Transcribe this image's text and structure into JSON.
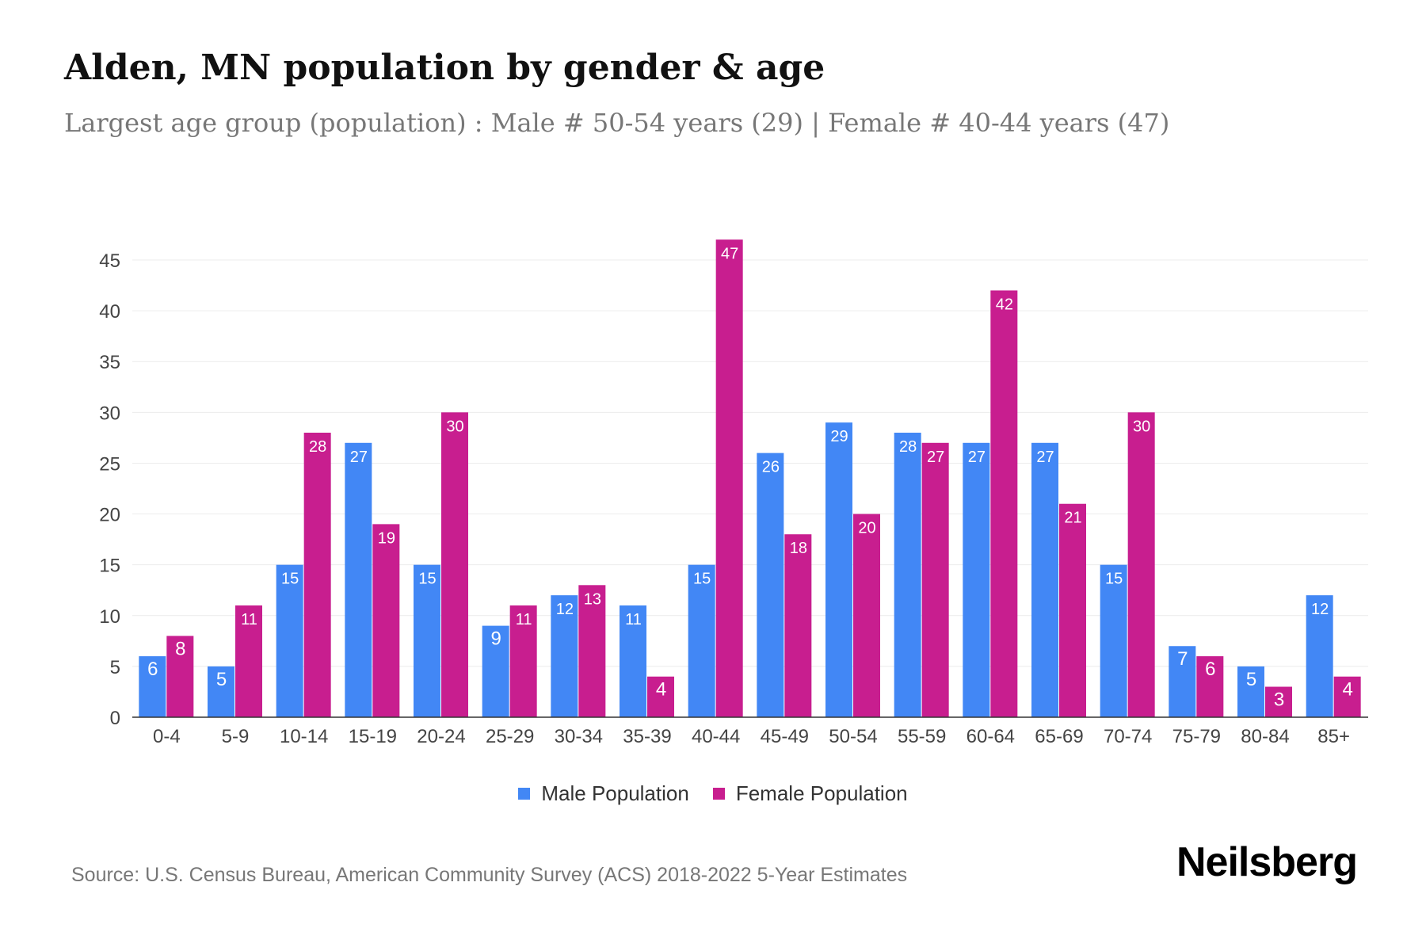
{
  "title": "Alden, MN population by gender & age",
  "subtitle": "Largest age group (population) : Male # 50-54 years (29) | Female # 40-44 years (47)",
  "source": "Source: U.S. Census Bureau, American Community Survey (ACS) 2018-2022 5-Year Estimates",
  "logo": "Neilsberg",
  "colors": {
    "male": "#4287f5",
    "female": "#c81e8f"
  },
  "chart_data": {
    "type": "bar",
    "categories": [
      "0-4",
      "5-9",
      "10-14",
      "15-19",
      "20-24",
      "25-29",
      "30-34",
      "35-39",
      "40-44",
      "45-49",
      "50-54",
      "55-59",
      "60-64",
      "65-69",
      "70-74",
      "75-79",
      "80-84",
      "85+"
    ],
    "series": [
      {
        "name": "Male Population",
        "values": [
          6,
          5,
          15,
          27,
          15,
          9,
          12,
          11,
          15,
          26,
          29,
          28,
          27,
          27,
          15,
          7,
          5,
          12
        ]
      },
      {
        "name": "Female Population",
        "values": [
          8,
          11,
          28,
          19,
          30,
          11,
          13,
          4,
          47,
          18,
          20,
          27,
          42,
          21,
          30,
          6,
          3,
          4
        ]
      }
    ],
    "yticks": [
      0,
      5,
      10,
      15,
      20,
      25,
      30,
      35,
      40,
      45
    ],
    "ylim": [
      0,
      45
    ],
    "grid": true,
    "legend": "bottom-center"
  }
}
